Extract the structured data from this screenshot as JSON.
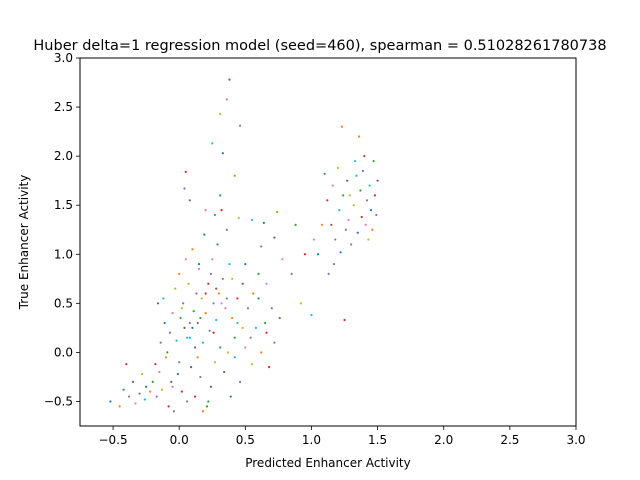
{
  "chart_data": {
    "type": "scatter",
    "title": "Huber delta=1 regression model (seed=460), spearman = 0.51028261780738",
    "xlabel": "Predicted Enhancer Activity",
    "ylabel": "True Enhancer Activity",
    "xlim": [
      -0.75,
      3.0
    ],
    "ylim": [
      -0.75,
      3.0
    ],
    "xticks": [
      "−0.5",
      "0.0",
      "0.5",
      "1.0",
      "1.5",
      "2.0",
      "2.5",
      "3.0"
    ],
    "yticks": [
      "−0.5",
      "0.0",
      "0.5",
      "1.0",
      "1.5",
      "2.0",
      "2.5",
      "3.0"
    ],
    "xtick_values": [
      -0.5,
      0.0,
      0.5,
      1.0,
      1.5,
      2.0,
      2.5,
      3.0
    ],
    "ytick_values": [
      -0.5,
      0.0,
      0.5,
      1.0,
      1.5,
      2.0,
      2.5,
      3.0
    ],
    "grid": false,
    "legend": "none",
    "marker_colors": [
      "#1f77b4",
      "#ff7f0e",
      "#2ca02c",
      "#d62728",
      "#9467bd",
      "#8c564b",
      "#e377c2",
      "#7f7f7f",
      "#bcbd22",
      "#17becf"
    ],
    "points": [
      [
        -0.52,
        -0.5
      ],
      [
        -0.45,
        -0.55
      ],
      [
        -0.42,
        -0.38
      ],
      [
        -0.4,
        -0.12
      ],
      [
        -0.38,
        -0.45
      ],
      [
        -0.35,
        -0.3
      ],
      [
        -0.33,
        -0.52
      ],
      [
        -0.3,
        -0.42
      ],
      [
        -0.28,
        -0.22
      ],
      [
        -0.26,
        -0.48
      ],
      [
        -0.25,
        -0.35
      ],
      [
        -0.22,
        -0.4
      ],
      [
        -0.2,
        -0.3
      ],
      [
        -0.18,
        -0.12
      ],
      [
        -0.17,
        -0.45
      ],
      [
        -0.16,
        0.5
      ],
      [
        -0.15,
        -0.2
      ],
      [
        -0.14,
        0.1
      ],
      [
        -0.13,
        -0.38
      ],
      [
        -0.12,
        0.55
      ],
      [
        -0.11,
        0.3
      ],
      [
        -0.1,
        -0.05
      ],
      [
        -0.09,
        0.0
      ],
      [
        -0.08,
        -0.55
      ],
      [
        -0.07,
        0.2
      ],
      [
        -0.06,
        -0.3
      ],
      [
        -0.05,
        0.4
      ],
      [
        -0.04,
        -0.6
      ],
      [
        -0.03,
        0.65
      ],
      [
        -0.02,
        0.12
      ],
      [
        -0.01,
        -0.22
      ],
      [
        0.0,
        0.8
      ],
      [
        0.01,
        0.35
      ],
      [
        0.02,
        -0.4
      ],
      [
        0.03,
        0.5
      ],
      [
        0.04,
        0.25
      ],
      [
        0.05,
        0.95
      ],
      [
        0.06,
        -0.5
      ],
      [
        0.07,
        0.7
      ],
      [
        0.08,
        0.15
      ],
      [
        0.09,
        -0.15
      ],
      [
        0.1,
        1.05
      ],
      [
        0.11,
        0.42
      ],
      [
        0.12,
        -0.45
      ],
      [
        0.13,
        0.6
      ],
      [
        0.14,
        0.3
      ],
      [
        0.15,
        0.85
      ],
      [
        0.16,
        -0.25
      ],
      [
        0.17,
        0.55
      ],
      [
        0.18,
        0.1
      ],
      [
        0.19,
        1.2
      ],
      [
        0.2,
        0.4
      ],
      [
        0.21,
        -0.55
      ],
      [
        0.22,
        0.7
      ],
      [
        0.23,
        0.22
      ],
      [
        0.24,
        -0.35
      ],
      [
        0.25,
        0.95
      ],
      [
        0.26,
        0.5
      ],
      [
        0.27,
        -0.1
      ],
      [
        0.28,
        0.33
      ],
      [
        0.29,
        1.1
      ],
      [
        0.3,
        0.6
      ],
      [
        0.31,
        0.05
      ],
      [
        0.32,
        1.45
      ],
      [
        0.33,
        0.75
      ],
      [
        0.34,
        -0.2
      ],
      [
        0.35,
        0.45
      ],
      [
        0.36,
        1.25
      ],
      [
        0.37,
        0.0
      ],
      [
        0.38,
        0.9
      ],
      [
        0.39,
        -0.45
      ],
      [
        0.4,
        0.35
      ],
      [
        0.42,
        0.15
      ],
      [
        0.44,
        0.55
      ],
      [
        0.46,
        -0.3
      ],
      [
        0.48,
        0.7
      ],
      [
        0.5,
        0.05
      ],
      [
        0.52,
        0.45
      ],
      [
        0.55,
        -0.12
      ],
      [
        0.58,
        0.25
      ],
      [
        0.6,
        0.55
      ],
      [
        0.62,
        0.0
      ],
      [
        0.65,
        0.3
      ],
      [
        0.68,
        -0.15
      ],
      [
        0.7,
        0.45
      ],
      [
        0.38,
        2.78
      ],
      [
        0.36,
        2.58
      ],
      [
        0.46,
        2.31
      ],
      [
        0.31,
        2.43
      ],
      [
        0.25,
        2.13
      ],
      [
        0.33,
        2.03
      ],
      [
        0.42,
        1.8
      ],
      [
        0.31,
        1.6
      ],
      [
        0.05,
        1.84
      ],
      [
        0.04,
        1.67
      ],
      [
        0.08,
        1.55
      ],
      [
        0.2,
        1.45
      ],
      [
        0.27,
        1.4
      ],
      [
        0.45,
        1.37
      ],
      [
        0.55,
        1.35
      ],
      [
        0.64,
        1.32
      ],
      [
        0.74,
        1.43
      ],
      [
        0.88,
        1.3
      ],
      [
        0.95,
        1.0
      ],
      [
        0.62,
        1.08
      ],
      [
        0.72,
        1.17
      ],
      [
        0.78,
        0.95
      ],
      [
        0.85,
        0.8
      ],
      [
        0.92,
        0.5
      ],
      [
        1.0,
        0.38
      ],
      [
        1.05,
        1.0
      ],
      [
        1.08,
        1.3
      ],
      [
        1.1,
        1.82
      ],
      [
        1.12,
        1.55
      ],
      [
        1.13,
        0.8
      ],
      [
        1.15,
        1.3
      ],
      [
        1.16,
        1.7
      ],
      [
        1.18,
        1.15
      ],
      [
        1.2,
        1.88
      ],
      [
        1.21,
        1.45
      ],
      [
        1.22,
        1.02
      ],
      [
        1.23,
        2.3
      ],
      [
        1.24,
        1.6
      ],
      [
        1.25,
        0.33
      ],
      [
        1.26,
        1.25
      ],
      [
        1.27,
        1.75
      ],
      [
        1.28,
        1.35
      ],
      [
        1.3,
        1.1
      ],
      [
        1.32,
        1.5
      ],
      [
        1.33,
        1.95
      ],
      [
        1.35,
        1.22
      ],
      [
        1.36,
        2.2
      ],
      [
        1.37,
        1.65
      ],
      [
        1.38,
        1.38
      ],
      [
        1.39,
        1.85
      ],
      [
        1.4,
        2.0
      ],
      [
        1.41,
        1.3
      ],
      [
        1.42,
        1.55
      ],
      [
        1.43,
        1.15
      ],
      [
        1.44,
        1.7
      ],
      [
        1.45,
        1.45
      ],
      [
        1.46,
        1.25
      ],
      [
        1.47,
        1.95
      ],
      [
        1.48,
        1.6
      ],
      [
        1.49,
        1.4
      ],
      [
        1.5,
        1.75
      ],
      [
        1.02,
        1.15
      ],
      [
        1.17,
        0.9
      ],
      [
        1.29,
        1.6
      ],
      [
        1.34,
        1.8
      ],
      [
        0.15,
        0.9
      ],
      [
        0.18,
        -0.6
      ],
      [
        0.22,
        -0.5
      ],
      [
        0.26,
        0.2
      ],
      [
        0.08,
        0.3
      ],
      [
        0.12,
        0.05
      ],
      [
        -0.05,
        -0.35
      ],
      [
        0.0,
        -0.1
      ],
      [
        0.02,
        0.45
      ],
      [
        0.06,
        0.15
      ],
      [
        0.1,
        0.25
      ],
      [
        0.14,
        -0.05
      ],
      [
        0.16,
        0.35
      ],
      [
        0.2,
        0.6
      ],
      [
        0.24,
        0.8
      ],
      [
        0.28,
        0.65
      ],
      [
        0.32,
        0.5
      ],
      [
        0.36,
        0.55
      ],
      [
        0.4,
        0.75
      ],
      [
        0.44,
        0.3
      ],
      [
        0.5,
        0.9
      ],
      [
        0.56,
        0.6
      ],
      [
        0.6,
        0.8
      ],
      [
        0.66,
        0.2
      ],
      [
        0.72,
        0.1
      ],
      [
        0.76,
        0.35
      ],
      [
        0.66,
        0.7
      ],
      [
        0.54,
        0.15
      ],
      [
        0.48,
        0.25
      ],
      [
        0.42,
        -0.05
      ]
    ]
  }
}
